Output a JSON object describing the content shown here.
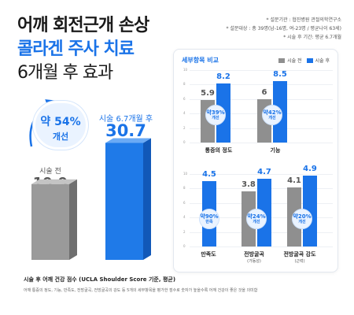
{
  "title": {
    "line1": "어깨 회전근개 손상",
    "line2": "콜라겐 주사 치료",
    "line3": "6개월 후 효과"
  },
  "notes": [
    "* 설문기관 : 협진병원 관절의학연구소",
    "* 설문대상 : 총 39명(남-16명, 여-23명 / 평균나이 63세)",
    "* 시술 후 기간: 평균 6.7개월"
  ],
  "colors": {
    "accent": "#1a73e8",
    "before": "#8f8f8f",
    "after": "#1a73e8"
  },
  "main": {
    "badge_line1": "약 54%",
    "badge_line2": "개선",
    "before_label": "시술 전",
    "before_value": "19.9",
    "after_label": "시술 6.7개월 후",
    "after_value": "30.7"
  },
  "panel": {
    "title": "세부항목 비교",
    "legend_before": "시술 전",
    "legend_after": "시술 후",
    "ticks": [
      "10",
      "8",
      "6",
      "4",
      "2",
      "0"
    ]
  },
  "chart_data": [
    {
      "type": "bar",
      "categories": [
        "시술 전",
        "시술 6.7개월 후"
      ],
      "values": [
        19.9,
        30.7
      ],
      "title": "시술 후 어깨 건강 점수 (UCLA Shoulder Score 기준, 평균)",
      "annotation": "약 54% 개선"
    },
    {
      "type": "bar",
      "categories": [
        "통증의 정도",
        "기능"
      ],
      "series": [
        {
          "name": "시술 전",
          "values": [
            5.9,
            6.0
          ]
        },
        {
          "name": "시술 후",
          "values": [
            8.2,
            8.5
          ]
        }
      ],
      "improvements": [
        "약39%",
        "약42%"
      ],
      "ylim": [
        0,
        10
      ]
    },
    {
      "type": "bar",
      "categories": [
        "만족도",
        "전방굴곡",
        "전방굴곡 강도"
      ],
      "category_sub": [
        "",
        "(가동성)",
        "(근력)"
      ],
      "series": [
        {
          "name": "시술 전",
          "values": [
            null,
            3.8,
            4.1
          ]
        },
        {
          "name": "시술 후",
          "values": [
            4.5,
            4.7,
            4.9
          ]
        }
      ],
      "improvements": [
        "약90%",
        "약24%",
        "약20%"
      ],
      "improvement_sub": [
        "만족",
        "개선",
        "개선"
      ],
      "ylim": [
        0,
        5
      ]
    }
  ],
  "footer": {
    "title": "시술 후 어깨 건강 점수 (UCLA Shoulder Score 기준, 평균)",
    "desc": "어깨 통증의 정도, 기능, 만족도, 전방굴곡, 전방굴곡의 강도 등 5개의 세부항목을 평가한 점수로 숫자가 높을수록 어깨 건강이 좋은 것을 의미함"
  }
}
